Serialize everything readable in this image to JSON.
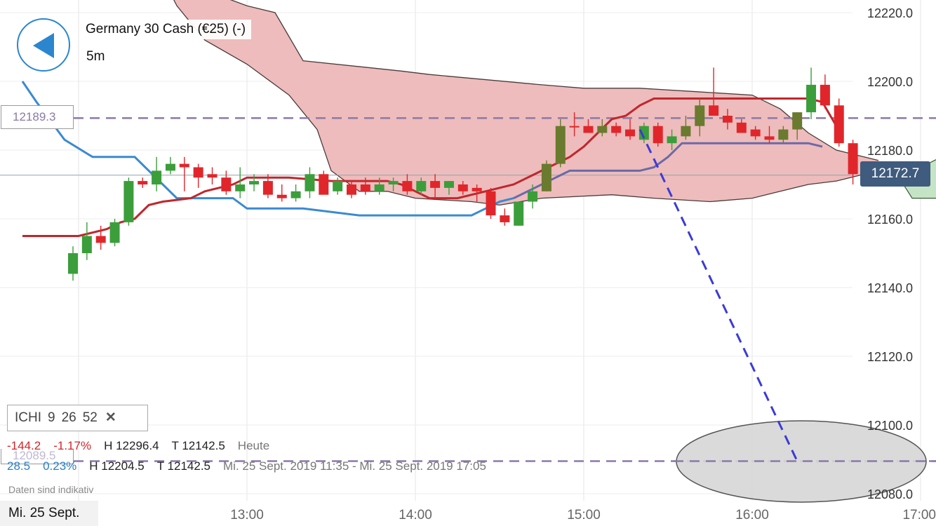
{
  "header": {
    "title": "Germany 30 Cash (€25) (-)",
    "interval": "5m"
  },
  "levels": {
    "upper_label": "12189.3",
    "lower_label": "12089.5",
    "current_price": "12172.7"
  },
  "indicator": {
    "name": "ICHI",
    "params": [
      "9",
      "26",
      "52"
    ],
    "close_symbol": "✕"
  },
  "stats": {
    "row1": {
      "change": "-144.2",
      "change_pct": "-1.17%",
      "high": "H 12296.4",
      "low": "T 12142.5",
      "range": "Heute"
    },
    "row2": {
      "change": "28.5",
      "change_pct": "0.23%",
      "high": "H 12204.5",
      "low": "T 12142.5",
      "range": "Mi. 25 Sept. 2019 11:35 - Mi. 25 Sept. 2019 17:05"
    }
  },
  "disclaimer": "Daten sind indikativ",
  "date_label": "Mi. 25 Sept.",
  "colors": {
    "up": "#3b9e3b",
    "up_dark": "#6a7a2e",
    "down": "#e0262b",
    "tenkan": "#c0272d",
    "kijun_blue": "#3a8ad0",
    "kijun_purple": "#6a6aa8",
    "kumo_bear": "#eebcbc",
    "kumo_bull": "#c5e4c5",
    "dashed_level": "#8a7aa8",
    "trend_line": "#3b3bd6"
  },
  "chart_data": {
    "type": "candlestick",
    "instrument": "Germany 30 Cash (€25) (-)",
    "interval": "5m",
    "x_ticks": [
      "13:00",
      "14:00",
      "15:00",
      "16:00",
      "17:00"
    ],
    "y_ticks": [
      "12080.0",
      "12100.0",
      "12120.0",
      "12140.0",
      "12160.0",
      "12180.0",
      "12200.0",
      "12220.0"
    ],
    "ylim": [
      12078.5,
      12222.5
    ],
    "candles": [
      {
        "t": "12:05",
        "o": 12144,
        "h": 12152,
        "l": 12142,
        "c": 12150,
        "up": true
      },
      {
        "t": "12:10",
        "o": 12150,
        "h": 12159,
        "l": 12148,
        "c": 12155,
        "up": true
      },
      {
        "t": "12:15",
        "o": 12155,
        "h": 12158,
        "l": 12151,
        "c": 12153,
        "up": false
      },
      {
        "t": "12:20",
        "o": 12153,
        "h": 12160,
        "l": 12152,
        "c": 12159,
        "up": true
      },
      {
        "t": "12:25",
        "o": 12159,
        "h": 12172,
        "l": 12158,
        "c": 12171,
        "up": true
      },
      {
        "t": "12:30",
        "o": 12171,
        "h": 12172,
        "l": 12169,
        "c": 12170,
        "up": false
      },
      {
        "t": "12:35",
        "o": 12170,
        "h": 12178,
        "l": 12168,
        "c": 12174,
        "up": true
      },
      {
        "t": "12:40",
        "o": 12174,
        "h": 12178,
        "l": 12173,
        "c": 12176,
        "up": true
      },
      {
        "t": "12:45",
        "o": 12176,
        "h": 12178,
        "l": 12168,
        "c": 12175,
        "up": false
      },
      {
        "t": "12:50",
        "o": 12175,
        "h": 12176,
        "l": 12169,
        "c": 12172,
        "up": false
      },
      {
        "t": "12:55",
        "o": 12172,
        "h": 12175,
        "l": 12170,
        "c": 12173,
        "up": false
      },
      {
        "t": "13:00",
        "o": 12172,
        "h": 12174,
        "l": 12167,
        "c": 12168,
        "up": false
      },
      {
        "t": "13:05",
        "o": 12168,
        "h": 12175,
        "l": 12166,
        "c": 12170,
        "up": true
      },
      {
        "t": "13:10",
        "o": 12170,
        "h": 12173,
        "l": 12168,
        "c": 12171,
        "up": true
      },
      {
        "t": "13:15",
        "o": 12171,
        "h": 12173,
        "l": 12166,
        "c": 12167,
        "up": false
      },
      {
        "t": "13:20",
        "o": 12167,
        "h": 12170,
        "l": 12165,
        "c": 12166,
        "up": false
      },
      {
        "t": "13:25",
        "o": 12166,
        "h": 12170,
        "l": 12165,
        "c": 12168,
        "up": true
      },
      {
        "t": "13:30",
        "o": 12168,
        "h": 12175,
        "l": 12166,
        "c": 12173,
        "up": true
      },
      {
        "t": "13:35",
        "o": 12173,
        "h": 12174,
        "l": 12168,
        "c": 12167,
        "up": false
      },
      {
        "t": "13:40",
        "o": 12168,
        "h": 12172,
        "l": 12167,
        "c": 12171,
        "up": true
      },
      {
        "t": "13:45",
        "o": 12170,
        "h": 12171,
        "l": 12166,
        "c": 12167,
        "up": false
      },
      {
        "t": "13:50",
        "o": 12170,
        "h": 12172,
        "l": 12167,
        "c": 12168,
        "up": false
      },
      {
        "t": "13:55",
        "o": 12168,
        "h": 12172,
        "l": 12167,
        "c": 12170,
        "up": true
      },
      {
        "t": "14:00",
        "o": 12170,
        "h": 12172,
        "l": 12168,
        "c": 12171,
        "up": true
      },
      {
        "t": "14:05",
        "o": 12171,
        "h": 12173,
        "l": 12167,
        "c": 12168,
        "up": false
      },
      {
        "t": "14:10",
        "o": 12168,
        "h": 12172,
        "l": 12167,
        "c": 12171,
        "up": true
      },
      {
        "t": "14:15",
        "o": 12171,
        "h": 12173,
        "l": 12166,
        "c": 12169,
        "up": false
      },
      {
        "t": "14:20",
        "o": 12169,
        "h": 12171,
        "l": 12167,
        "c": 12171,
        "up": true
      },
      {
        "t": "14:25",
        "o": 12170,
        "h": 12171,
        "l": 12167,
        "c": 12168,
        "up": false
      },
      {
        "t": "14:30",
        "o": 12168,
        "h": 12170,
        "l": 12165,
        "c": 12169,
        "up": false
      },
      {
        "t": "14:35",
        "o": 12168,
        "h": 12169,
        "l": 12160,
        "c": 12161,
        "up": false
      },
      {
        "t": "14:40",
        "o": 12161,
        "h": 12163,
        "l": 12158,
        "c": 12159,
        "up": false
      },
      {
        "t": "14:45",
        "o": 12158,
        "h": 12165,
        "l": 12158,
        "c": 12165,
        "up": true
      },
      {
        "t": "14:50",
        "o": 12165,
        "h": 12170,
        "l": 12163,
        "c": 12168,
        "up": true
      },
      {
        "t": "14:55",
        "o": 12168,
        "h": 12177,
        "l": 12168,
        "c": 12176,
        "up": true
      },
      {
        "t": "15:00",
        "o": 12176,
        "h": 12189,
        "l": 12175,
        "c": 12187,
        "up": true
      },
      {
        "t": "15:05",
        "o": 12187,
        "h": 12191,
        "l": 12184,
        "c": 12187,
        "up": false
      },
      {
        "t": "15:10",
        "o": 12187,
        "h": 12189,
        "l": 12185,
        "c": 12185,
        "up": false
      },
      {
        "t": "15:15",
        "o": 12185,
        "h": 12189,
        "l": 12184,
        "c": 12187,
        "up": true
      },
      {
        "t": "15:20",
        "o": 12187,
        "h": 12188,
        "l": 12184,
        "c": 12185,
        "up": false
      },
      {
        "t": "15:25",
        "o": 12186,
        "h": 12189,
        "l": 12183,
        "c": 12184,
        "up": false
      },
      {
        "t": "15:30",
        "o": 12183,
        "h": 12188,
        "l": 12182,
        "c": 12187,
        "up": true
      },
      {
        "t": "15:35",
        "o": 12187,
        "h": 12188,
        "l": 12181,
        "c": 12182,
        "up": false
      },
      {
        "t": "15:40",
        "o": 12182,
        "h": 12186,
        "l": 12180,
        "c": 12184,
        "up": true
      },
      {
        "t": "15:45",
        "o": 12184,
        "h": 12190,
        "l": 12183,
        "c": 12187,
        "up": true
      },
      {
        "t": "15:50",
        "o": 12187,
        "h": 12195,
        "l": 12184,
        "c": 12193,
        "up": true
      },
      {
        "t": "15:55",
        "o": 12193,
        "h": 12204,
        "l": 12190,
        "c": 12190,
        "up": false
      },
      {
        "t": "16:00",
        "o": 12190,
        "h": 12192,
        "l": 12186,
        "c": 12188,
        "up": false
      },
      {
        "t": "16:05",
        "o": 12188,
        "h": 12189,
        "l": 12185,
        "c": 12185,
        "up": false
      },
      {
        "t": "16:10",
        "o": 12186,
        "h": 12187,
        "l": 12183,
        "c": 12184,
        "up": false
      },
      {
        "t": "16:15",
        "o": 12184,
        "h": 12187,
        "l": 12182,
        "c": 12183,
        "up": false
      },
      {
        "t": "16:20",
        "o": 12183,
        "h": 12187,
        "l": 12182,
        "c": 12186,
        "up": true
      },
      {
        "t": "16:25",
        "o": 12186,
        "h": 12191,
        "l": 12183,
        "c": 12191,
        "up": true
      },
      {
        "t": "16:30",
        "o": 12191,
        "h": 12204,
        "l": 12189,
        "c": 12199,
        "up": true
      },
      {
        "t": "16:35",
        "o": 12199,
        "h": 12202,
        "l": 12192,
        "c": 12193,
        "up": false
      },
      {
        "t": "16:40",
        "o": 12193,
        "h": 12195,
        "l": 12181,
        "c": 12182,
        "up": false
      },
      {
        "t": "16:45",
        "o": 12182,
        "h": 12183,
        "l": 12170,
        "c": 12173,
        "up": false
      }
    ],
    "levels": [
      12189.3,
      12089.5
    ],
    "current_price": 12172.7,
    "indicator": {
      "name": "ICHI",
      "params": [
        9,
        26,
        52
      ]
    }
  }
}
